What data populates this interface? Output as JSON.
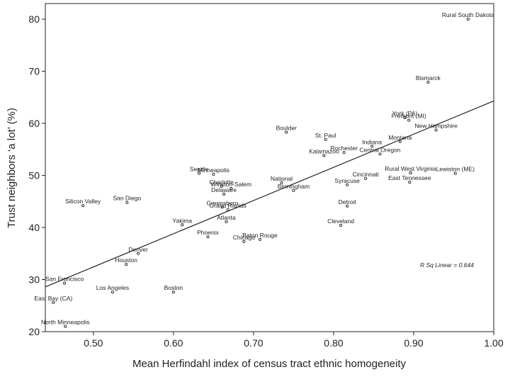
{
  "chart_data": {
    "type": "scatter",
    "xlabel": "Mean Herfindahl index of census tract ethnic homogeneity",
    "ylabel": "Trust neighbors ‘a lot’ (%)",
    "xlim": [
      0.44,
      1.0
    ],
    "ylim": [
      20,
      83
    ],
    "x_ticks": [
      "0.50",
      "0.60",
      "0.70",
      "0.80",
      "0.90",
      "1.00"
    ],
    "x_tick_values": [
      0.5,
      0.6,
      0.7,
      0.8,
      0.9,
      1.0
    ],
    "y_ticks": [
      "20",
      "30",
      "40",
      "50",
      "60",
      "70",
      "80"
    ],
    "y_tick_values": [
      20,
      30,
      40,
      50,
      60,
      70,
      80
    ],
    "grid": false,
    "fit_line": {
      "x": [
        0.44,
        1.0
      ],
      "y": [
        28.6,
        64.3
      ]
    },
    "annotation": "R Sq Linear = 0.644",
    "points": [
      {
        "label": "Rural South Dakota",
        "x": 0.968,
        "y": 80.0
      },
      {
        "label": "Bismarck",
        "x": 0.918,
        "y": 67.9
      },
      {
        "label": "York (PA)",
        "x": 0.889,
        "y": 61.1
      },
      {
        "label": "Fremont (MI)",
        "x": 0.894,
        "y": 60.6
      },
      {
        "label": "New Hampshire",
        "x": 0.928,
        "y": 58.7
      },
      {
        "label": "Montana",
        "x": 0.883,
        "y": 56.5
      },
      {
        "label": "Boulder",
        "x": 0.741,
        "y": 58.3
      },
      {
        "label": "St. Paul",
        "x": 0.79,
        "y": 56.9
      },
      {
        "label": "Indiana",
        "x": 0.848,
        "y": 55.6
      },
      {
        "label": "Rochester",
        "x": 0.813,
        "y": 54.4
      },
      {
        "label": "Kalamazoo",
        "x": 0.788,
        "y": 53.8
      },
      {
        "label": "Central Oregon",
        "x": 0.858,
        "y": 54.1
      },
      {
        "label": "Seattle",
        "x": 0.632,
        "y": 50.4
      },
      {
        "label": "Minneapolis",
        "x": 0.65,
        "y": 50.2
      },
      {
        "label": "Rural West Virginia",
        "x": 0.896,
        "y": 50.5
      },
      {
        "label": "Lewiston (ME)",
        "x": 0.952,
        "y": 50.4
      },
      {
        "label": "Cincinnati",
        "x": 0.84,
        "y": 49.4
      },
      {
        "label": "East Tennessee",
        "x": 0.895,
        "y": 48.7
      },
      {
        "label": "National",
        "x": 0.735,
        "y": 48.6
      },
      {
        "label": "Syracuse",
        "x": 0.817,
        "y": 48.2
      },
      {
        "label": "Charlotte",
        "x": 0.66,
        "y": 47.9
      },
      {
        "label": "Winston-Salem",
        "x": 0.672,
        "y": 47.5
      },
      {
        "label": "Birmingham",
        "x": 0.75,
        "y": 47.1
      },
      {
        "label": "Delaware",
        "x": 0.663,
        "y": 46.4
      },
      {
        "label": "Silicon Valley",
        "x": 0.487,
        "y": 44.2
      },
      {
        "label": "San Diego",
        "x": 0.542,
        "y": 44.8
      },
      {
        "label": "Greensboro",
        "x": 0.661,
        "y": 43.9
      },
      {
        "label": "Detroit",
        "x": 0.817,
        "y": 44.1
      },
      {
        "label": "Grand Rapids",
        "x": 0.668,
        "y": 43.4
      },
      {
        "label": "Atlanta",
        "x": 0.666,
        "y": 41.1
      },
      {
        "label": "Yakima",
        "x": 0.611,
        "y": 40.5
      },
      {
        "label": "Cleveland",
        "x": 0.809,
        "y": 40.4
      },
      {
        "label": "Phoenix",
        "x": 0.643,
        "y": 38.2
      },
      {
        "label": "Baton Rouge",
        "x": 0.708,
        "y": 37.7
      },
      {
        "label": "Chicago",
        "x": 0.688,
        "y": 37.3
      },
      {
        "label": "Denver",
        "x": 0.556,
        "y": 35.0
      },
      {
        "label": "Houston",
        "x": 0.541,
        "y": 32.9
      },
      {
        "label": "San Francisco",
        "x": 0.464,
        "y": 29.3
      },
      {
        "label": "Los Angeles",
        "x": 0.524,
        "y": 27.6
      },
      {
        "label": "Boston",
        "x": 0.6,
        "y": 27.6
      },
      {
        "label": "East Bay (CA)",
        "x": 0.45,
        "y": 25.6
      },
      {
        "label": "North Minneapolis",
        "x": 0.465,
        "y": 21.0
      }
    ]
  }
}
